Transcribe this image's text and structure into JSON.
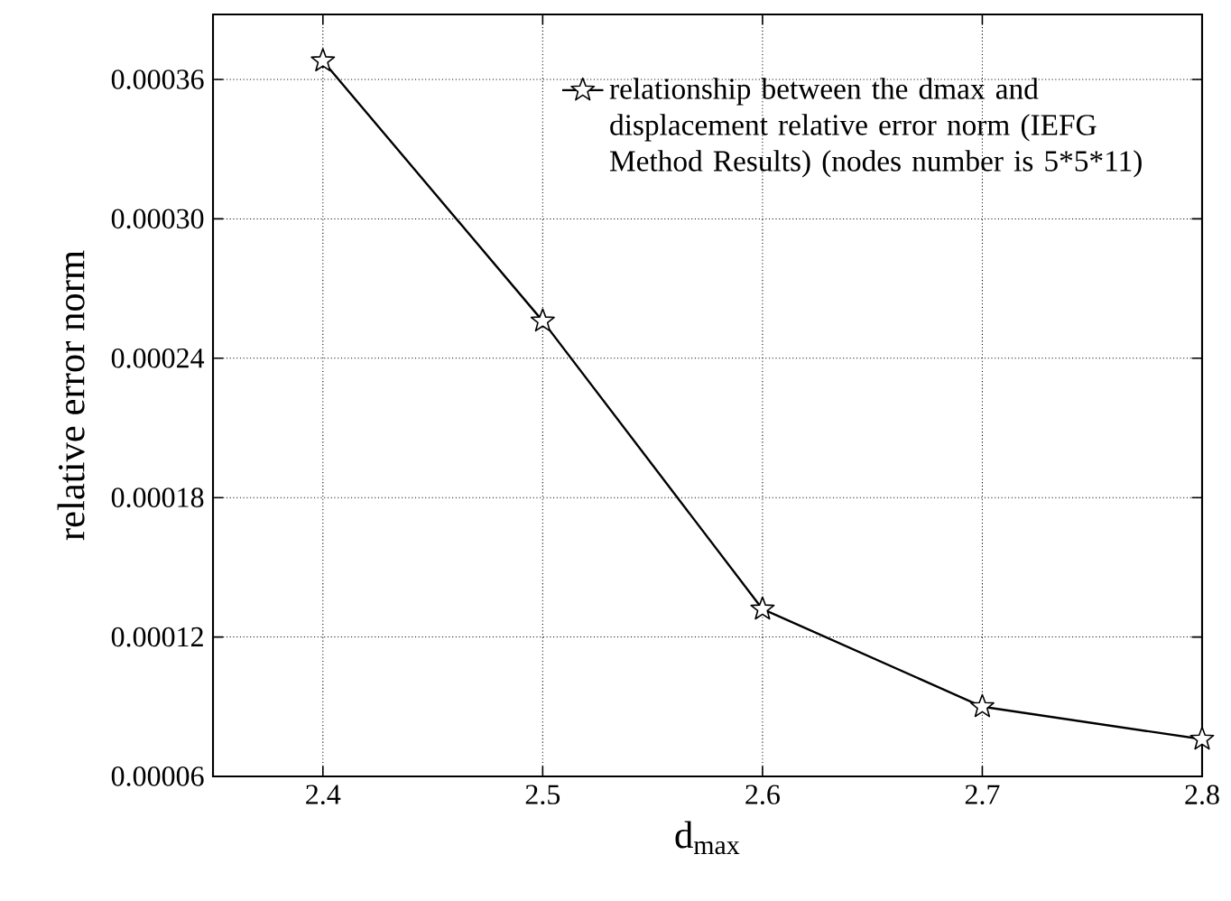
{
  "chart_data": {
    "type": "line",
    "xlabel": "d$_{max}$",
    "ylabel": "relative error norm",
    "x": [
      2.4,
      2.5,
      2.6,
      2.7,
      2.8
    ],
    "series": [
      {
        "name": "relationship between the dmax and displacement relative error norm (IEFG Method Results) (nodes number is 5*5*11)",
        "color": "#000000",
        "values": [
          0.000368,
          0.000256,
          0.000132,
          9e-05,
          7.6e-05
        ]
      }
    ],
    "xlim": [
      2.35,
      2.8
    ],
    "ylim": [
      6e-05,
      0.000388
    ],
    "xticks": [
      2.4,
      2.5,
      2.6,
      2.7,
      2.8
    ],
    "yticks": [
      {
        "value": 6e-05,
        "label": "0.00006"
      },
      {
        "value": 0.00012,
        "label": "0.00012"
      },
      {
        "value": 0.00018,
        "label": "0.00018"
      },
      {
        "value": 0.00024,
        "label": "0.00024"
      },
      {
        "value": 0.0003,
        "label": "0.00030"
      },
      {
        "value": 0.00036,
        "label": "0.00036"
      }
    ],
    "grid": true,
    "legend": "top right",
    "marker": "star",
    "line_style": "solid"
  }
}
